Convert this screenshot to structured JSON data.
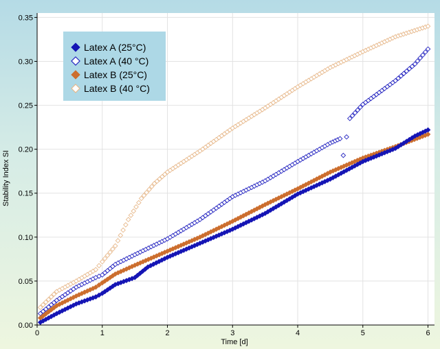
{
  "chart_data": {
    "type": "scatter",
    "title": "",
    "xlabel": "Time [d]",
    "ylabel": "Stability Index SI",
    "xlim": [
      0,
      6.1
    ],
    "ylim": [
      0,
      0.355
    ],
    "xticks": [
      "0",
      "1",
      "2",
      "3",
      "4",
      "5",
      "6"
    ],
    "yticks": [
      "0.00",
      "0.05",
      "0.10",
      "0.15",
      "0.20",
      "0.25",
      "0.30",
      "0.35"
    ],
    "grid": true,
    "legend_position": "top-left",
    "colors": {
      "plot_bg": "#ffffff",
      "grid": "#e2e2e2",
      "legend_bg": "#add8e6",
      "latex_a": "#1515b5",
      "latex_a_hollow": "#2424c0",
      "latex_b": "#cc6e2e",
      "latex_b_hollow": "#e7b98c"
    },
    "series": [
      {
        "name": "Latex A (25°C)",
        "marker": "filled-diamond",
        "color": "#1515b5",
        "x": [
          0.05,
          0.3,
          0.6,
          0.9,
          1.0,
          1.2,
          1.5,
          1.7,
          2.0,
          2.5,
          3.0,
          3.5,
          4.0,
          4.5,
          5.0,
          5.5,
          5.8,
          6.0
        ],
        "y": [
          0.003,
          0.013,
          0.024,
          0.032,
          0.036,
          0.046,
          0.054,
          0.066,
          0.077,
          0.093,
          0.109,
          0.127,
          0.149,
          0.166,
          0.186,
          0.201,
          0.215,
          0.222
        ]
      },
      {
        "name": "Latex A (40 °C)",
        "marker": "hollow-diamond",
        "color": "#2424c0",
        "x": [
          0.05,
          0.3,
          0.6,
          0.9,
          1.0,
          1.2,
          1.5,
          2.0,
          2.5,
          3.0,
          3.5,
          4.0,
          4.5,
          4.65,
          4.7,
          4.8,
          5.0,
          5.5,
          5.8,
          6.0
        ],
        "y": [
          0.013,
          0.028,
          0.043,
          0.054,
          0.057,
          0.069,
          0.08,
          0.098,
          0.12,
          0.146,
          0.164,
          0.186,
          0.207,
          0.212,
          0.193,
          0.235,
          0.251,
          0.278,
          0.297,
          0.314
        ]
      },
      {
        "name": "Latex B (25°C)",
        "marker": "filled-diamond",
        "color": "#cc6e2e",
        "x": [
          0.05,
          0.3,
          0.6,
          0.9,
          1.0,
          1.2,
          1.5,
          2.0,
          2.5,
          3.0,
          3.5,
          4.0,
          4.5,
          5.0,
          5.5,
          6.0
        ],
        "y": [
          0.008,
          0.022,
          0.033,
          0.043,
          0.048,
          0.058,
          0.068,
          0.084,
          0.1,
          0.118,
          0.137,
          0.155,
          0.174,
          0.19,
          0.203,
          0.217
        ]
      },
      {
        "name": "Latex B (40 °C)",
        "marker": "hollow-diamond",
        "color": "#e7b98c",
        "x": [
          0.05,
          0.3,
          0.6,
          0.9,
          1.0,
          1.2,
          1.4,
          1.6,
          1.8,
          2.0,
          2.5,
          3.0,
          3.5,
          4.0,
          4.5,
          5.0,
          5.5,
          6.0
        ],
        "y": [
          0.02,
          0.038,
          0.05,
          0.063,
          0.072,
          0.09,
          0.12,
          0.144,
          0.161,
          0.174,
          0.198,
          0.224,
          0.247,
          0.271,
          0.293,
          0.311,
          0.328,
          0.34
        ]
      }
    ]
  }
}
